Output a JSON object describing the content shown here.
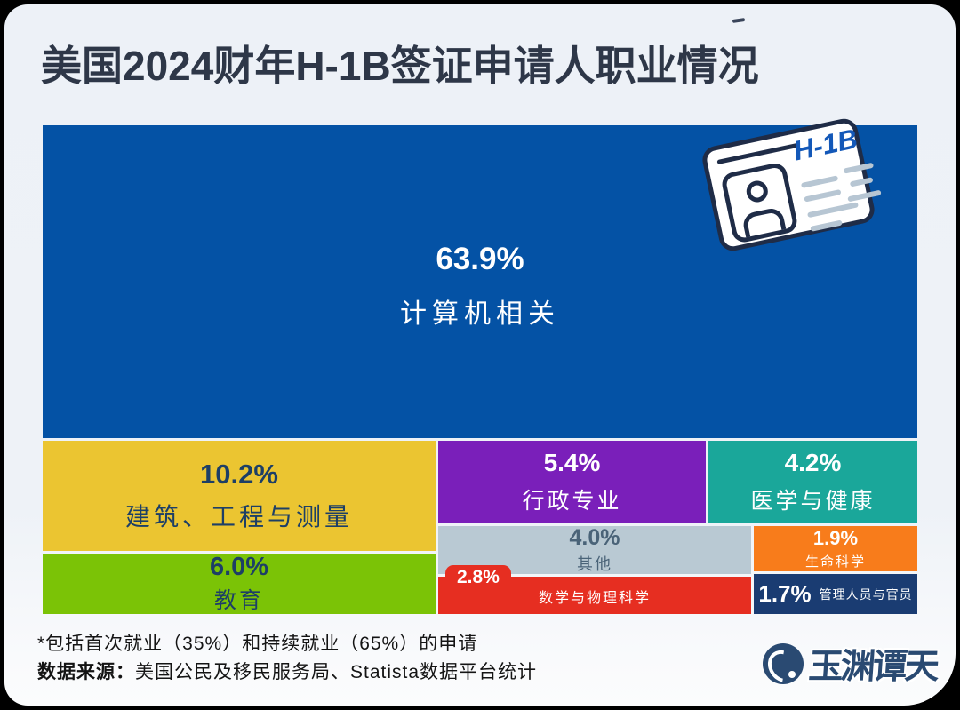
{
  "title": "美国2024财年H-1B签证申请人职业情况",
  "h1b_card": {
    "label": "H-1B"
  },
  "chart_data": {
    "type": "treemap",
    "title": "美国2024财年H-1B签证申请人职业情况",
    "unit": "%",
    "blocks": [
      {
        "label": "计算机相关",
        "value": "63.9%",
        "pct": 63.9,
        "color": "#0452a5",
        "text_color": "#ffffff"
      },
      {
        "label": "建筑、工程与测量",
        "value": "10.2%",
        "pct": 10.2,
        "color": "#ebc531",
        "text_color": "#1d3f66"
      },
      {
        "label": "教育",
        "value": "6.0%",
        "pct": 6.0,
        "color": "#7bc306",
        "text_color": "#1d3f66"
      },
      {
        "label": "行政专业",
        "value": "5.4%",
        "pct": 5.4,
        "color": "#7a1fba",
        "text_color": "#ffffff"
      },
      {
        "label": "医学与健康",
        "value": "4.2%",
        "pct": 4.2,
        "color": "#1aa79a",
        "text_color": "#ffffff"
      },
      {
        "label": "其他",
        "value": "4.0%",
        "pct": 4.0,
        "color": "#b9c9d3",
        "text_color": "#4a6378"
      },
      {
        "label": "数学与物理科学",
        "value": "2.8%",
        "pct": 2.8,
        "color": "#e62e21",
        "text_color": "#ffffff"
      },
      {
        "label": "生命科学",
        "value": "1.9%",
        "pct": 1.9,
        "color": "#f87c1b",
        "text_color": "#ffffff"
      },
      {
        "label": "管理人员与官员",
        "value": "1.7%",
        "pct": 1.7,
        "color": "#1a3c72",
        "text_color": "#ffffff"
      }
    ],
    "legend": "none",
    "layout_hint": "largest block on top full width; lower-left column: 10.2/6.0; middle column: 5.4/4.0/2.8; right column: 4.2/1.9/1.7"
  },
  "footer": {
    "note": "*包括首次就业（35%）和持续就业（65%）的申请",
    "source_label": "数据来源：",
    "source_text": "美国公民及移民服务局、Statista数据平台统计",
    "logo_text": "玉渊谭天"
  }
}
